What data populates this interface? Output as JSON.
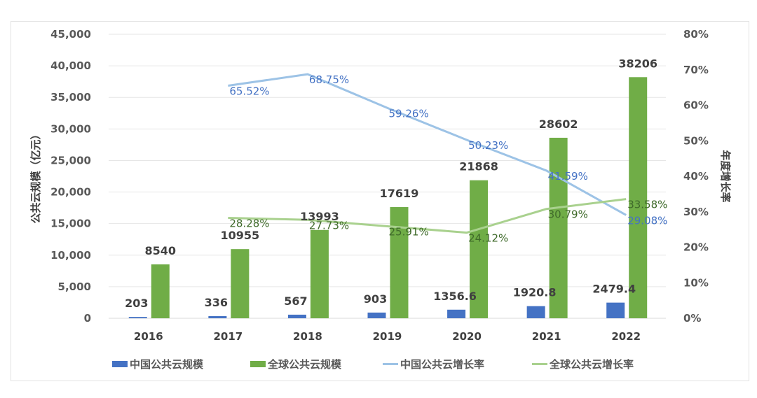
{
  "chart_data": {
    "type": "bar",
    "combo": "bar+line (dual axis)",
    "categories": [
      "2016",
      "2017",
      "2018",
      "2019",
      "2020",
      "2021",
      "2022"
    ],
    "series": [
      {
        "name": "中国公共云规模",
        "type": "bar",
        "axis": "left",
        "color": "#4472c4",
        "values": [
          203,
          336,
          567,
          903,
          1356.6,
          1920.8,
          2479.4
        ],
        "labels": [
          "203",
          "336",
          "567",
          "903",
          "1356.6",
          "1920.8",
          "2479.4"
        ]
      },
      {
        "name": "全球公共云规模",
        "type": "bar",
        "axis": "left",
        "color": "#70ad47",
        "values": [
          8540,
          10955,
          13993,
          17619,
          21868,
          28602,
          38206
        ],
        "labels": [
          "8540",
          "10955",
          "13993",
          "17619",
          "21868",
          "28602",
          "38206"
        ]
      },
      {
        "name": "中国公共云增长率",
        "type": "line",
        "axis": "right",
        "color": "#9dc3e6",
        "values": [
          null,
          65.52,
          68.75,
          59.26,
          50.23,
          41.59,
          29.08
        ],
        "labels": [
          "",
          "65.52%",
          "68.75%",
          "59.26%",
          "50.23%",
          "41.59%",
          "29.08%"
        ]
      },
      {
        "name": "全球公共云增长率",
        "type": "line",
        "axis": "right",
        "color": "#a9d18e",
        "values": [
          null,
          28.28,
          27.73,
          25.91,
          24.12,
          30.79,
          33.58
        ],
        "labels": [
          "",
          "28.28%",
          "27.73%",
          "25.91%",
          "24.12%",
          "30.79%",
          "33.58%"
        ]
      }
    ],
    "title": "",
    "xlabel": "",
    "ylabel": "公共云规模（亿元）",
    "ylabel_right": "年度增长率",
    "ylim": [
      0,
      45000
    ],
    "ylim_right": [
      0,
      80
    ],
    "yticks": [
      "0",
      "5,000",
      "10,000",
      "15,000",
      "20,000",
      "25,000",
      "30,000",
      "35,000",
      "40,000",
      "45,000"
    ],
    "yticks_right": [
      "0%",
      "10%",
      "20%",
      "30%",
      "40%",
      "50%",
      "60%",
      "70%",
      "80%"
    ],
    "grid": true,
    "legend_position": "bottom"
  },
  "legend": [
    {
      "label": "中国公共云规模",
      "kind": "bar",
      "color": "#4472c4"
    },
    {
      "label": "全球公共云规模",
      "kind": "bar",
      "color": "#70ad47"
    },
    {
      "label": "中国公共云增长率",
      "kind": "line",
      "color": "#9dc3e6"
    },
    {
      "label": "全球公共云增长率",
      "kind": "line",
      "color": "#a9d18e"
    }
  ]
}
